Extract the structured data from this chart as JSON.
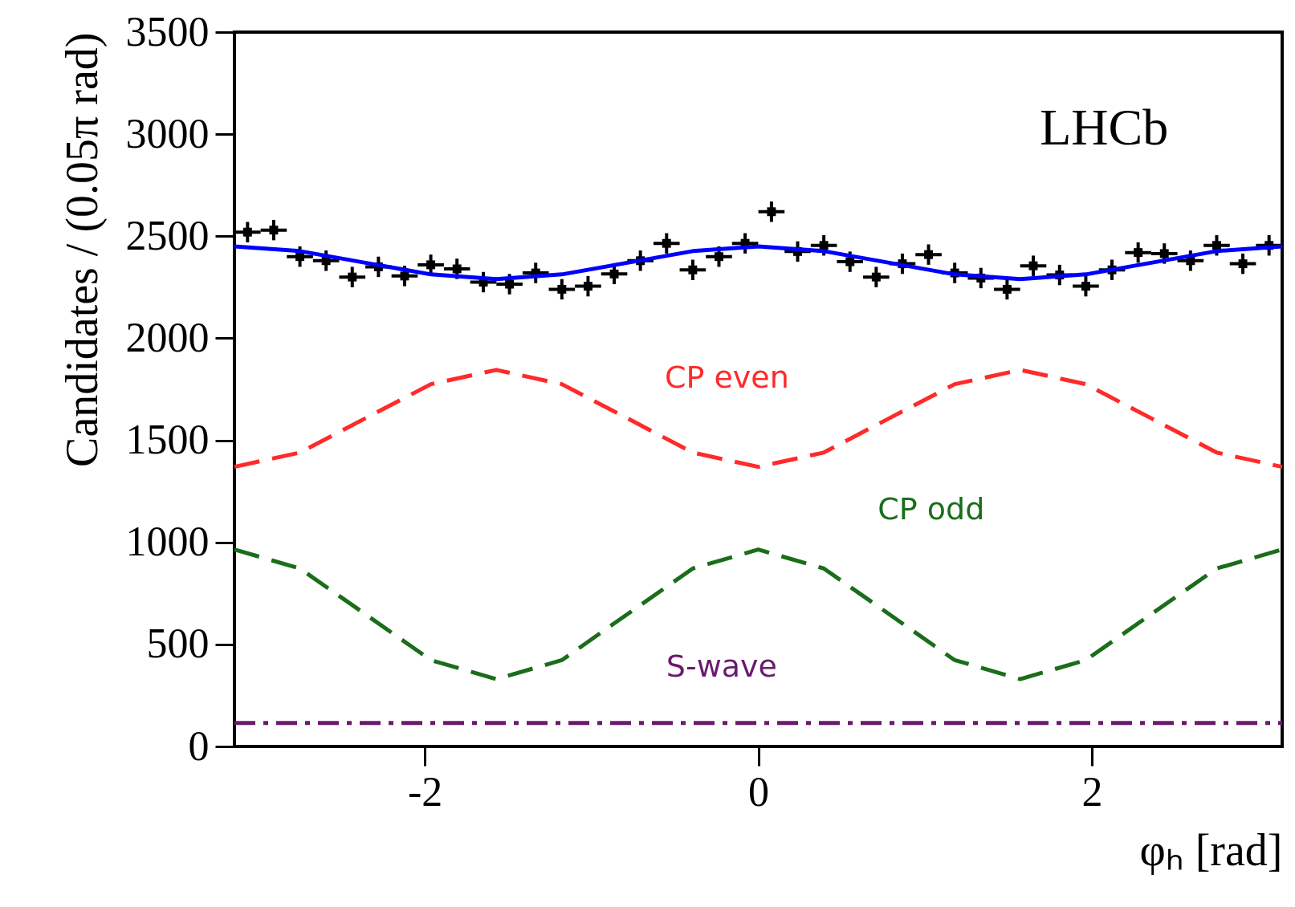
{
  "chart_data": {
    "type": "line",
    "xlabel": "φₕ [rad]",
    "ylabel": "Candidates / (0.05π rad)",
    "xlim": [
      -3.1416,
      3.1416
    ],
    "xticks": [
      -2,
      0,
      2
    ],
    "ylim": [
      0,
      3500
    ],
    "yticks": [
      0,
      500,
      1000,
      1500,
      2000,
      2500,
      3000,
      3500
    ],
    "series": [
      {
        "type": "scatter",
        "color": "#000000",
        "marker": "square",
        "x": [
          -3.063,
          -2.906,
          -2.749,
          -2.592,
          -2.435,
          -2.278,
          -2.121,
          -1.964,
          -1.807,
          -1.649,
          -1.492,
          -1.335,
          -1.178,
          -1.021,
          -0.864,
          -0.707,
          -0.55,
          -0.393,
          -0.236,
          -0.079,
          0.079,
          0.236,
          0.393,
          0.55,
          0.707,
          0.864,
          1.021,
          1.178,
          1.335,
          1.492,
          1.649,
          1.807,
          1.964,
          2.121,
          2.278,
          2.435,
          2.592,
          2.749,
          2.906,
          3.063
        ],
        "values": [
          2520,
          2530,
          2400,
          2380,
          2300,
          2350,
          2305,
          2360,
          2340,
          2275,
          2265,
          2320,
          2240,
          2255,
          2315,
          2380,
          2465,
          2335,
          2400,
          2465,
          2620,
          2425,
          2455,
          2375,
          2300,
          2365,
          2410,
          2320,
          2295,
          2240,
          2355,
          2310,
          2255,
          2335,
          2420,
          2415,
          2380,
          2455,
          2365,
          2455
        ],
        "errors": [
          50,
          50,
          50,
          50,
          50,
          50,
          50,
          50,
          50,
          50,
          50,
          50,
          50,
          50,
          50,
          50,
          50,
          50,
          50,
          50,
          50,
          50,
          50,
          50,
          50,
          50,
          50,
          50,
          50,
          50,
          50,
          50,
          50,
          50,
          50,
          50,
          50,
          50,
          50,
          50
        ],
        "xerrors": [
          0.0785,
          0.0785,
          0.0785,
          0.0785,
          0.0785,
          0.0785,
          0.0785,
          0.0785,
          0.0785,
          0.0785,
          0.0785,
          0.0785,
          0.0785,
          0.0785,
          0.0785,
          0.0785,
          0.0785,
          0.0785,
          0.0785,
          0.0785,
          0.0785,
          0.0785,
          0.0785,
          0.0785,
          0.0785,
          0.0785,
          0.0785,
          0.0785,
          0.0785,
          0.0785,
          0.0785,
          0.0785,
          0.0785,
          0.0785,
          0.0785,
          0.0785,
          0.0785,
          0.0785,
          0.0785,
          0.0785
        ]
      },
      {
        "color": "#0000ff",
        "line_style": "solid",
        "x": [
          -3.1416,
          -2.7489,
          -2.3562,
          -1.9635,
          -1.5708,
          -1.1781,
          -0.7854,
          -0.3927,
          0,
          0.3927,
          0.7854,
          1.1781,
          1.5708,
          1.9635,
          2.3562,
          2.7489,
          3.1416
        ],
        "values": [
          2450,
          2427,
          2370,
          2313,
          2290,
          2313,
          2370,
          2427,
          2450,
          2427,
          2370,
          2313,
          2290,
          2313,
          2370,
          2427,
          2450
        ]
      },
      {
        "name": "CP even",
        "color": "#ff2a2a",
        "line_style": "dashed",
        "x": [
          -3.1416,
          -2.7489,
          -2.3562,
          -1.9635,
          -1.5708,
          -1.1781,
          -0.7854,
          -0.3927,
          0,
          0.3927,
          0.7854,
          1.1781,
          1.5708,
          1.9635,
          2.3562,
          2.7489,
          3.1416
        ],
        "values": [
          1370,
          1440,
          1608,
          1775,
          1845,
          1775,
          1608,
          1440,
          1370,
          1440,
          1608,
          1775,
          1845,
          1775,
          1608,
          1440,
          1370
        ]
      },
      {
        "name": "CP odd",
        "color": "#1a6e1a",
        "line_style": "dashed",
        "x": [
          -3.1416,
          -2.7489,
          -2.3562,
          -1.9635,
          -1.5708,
          -1.1781,
          -0.7854,
          -0.3927,
          0,
          0.3927,
          0.7854,
          1.1781,
          1.5708,
          1.9635,
          2.3562,
          2.7489,
          3.1416
        ],
        "values": [
          965,
          872,
          648,
          423,
          330,
          423,
          648,
          872,
          965,
          872,
          648,
          423,
          330,
          423,
          648,
          872,
          965
        ]
      },
      {
        "name": "S-wave",
        "color": "#6a1a6e",
        "line_style": "dashdot",
        "x": [
          -3.1416,
          3.1416
        ],
        "values": [
          115,
          115
        ]
      }
    ],
    "annotations": [
      "LHCb"
    ]
  }
}
